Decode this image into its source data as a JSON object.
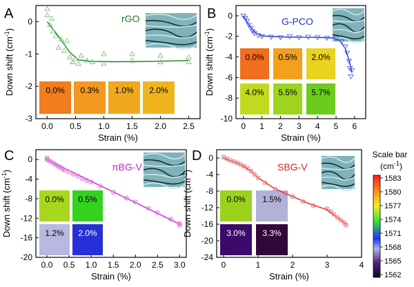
{
  "chart_data": [
    {
      "panel": "A",
      "type": "scatter",
      "title": "rGO",
      "title_color": "#1e7a1e",
      "xlabel": "Strain (%)",
      "ylabel": "Down shift (cm-1)",
      "xlim": [
        -0.2,
        2.7
      ],
      "ylim": [
        -3,
        0.5
      ],
      "xticks": [
        0.0,
        0.5,
        1.0,
        1.5,
        2.0,
        2.5
      ],
      "xtick_labels": [
        "0.0",
        "0.5",
        "1.0",
        "1.5",
        "2.0",
        "2.5"
      ],
      "yticks": [
        0,
        -1,
        -2,
        -3
      ],
      "ytick_labels": [
        "0",
        "-1",
        "-2",
        "-3"
      ],
      "marker": "triangle-up",
      "series": [
        {
          "color": "#1e7a1e",
          "points": [
            [
              0.0,
              0.4
            ],
            [
              0.0,
              0.2
            ],
            [
              0.05,
              -0.1
            ],
            [
              0.08,
              0.1
            ],
            [
              0.1,
              -0.3
            ],
            [
              0.15,
              -0.45
            ],
            [
              0.2,
              -0.8
            ],
            [
              0.25,
              -0.55
            ],
            [
              0.3,
              -0.9
            ],
            [
              0.35,
              -0.6
            ],
            [
              0.4,
              -1.1
            ],
            [
              0.45,
              -1.25
            ],
            [
              0.5,
              -1.15
            ],
            [
              0.55,
              -1.3
            ],
            [
              0.6,
              -1.05
            ],
            [
              0.7,
              -1.2
            ],
            [
              0.8,
              -1.25
            ],
            [
              1.0,
              -1.0
            ],
            [
              1.0,
              -1.3
            ],
            [
              1.5,
              -1.2
            ],
            [
              1.5,
              -1.0
            ],
            [
              2.0,
              -1.25
            ],
            [
              2.0,
              -1.05
            ],
            [
              2.5,
              -1.1
            ],
            [
              2.5,
              -1.25
            ]
          ],
          "fit": [
            [
              0.0,
              0.0
            ],
            [
              0.2,
              -0.45
            ],
            [
              0.4,
              -0.95
            ],
            [
              0.55,
              -1.18
            ],
            [
              0.8,
              -1.23
            ],
            [
              1.2,
              -1.24
            ],
            [
              1.8,
              -1.23
            ],
            [
              2.5,
              -1.2
            ]
          ]
        }
      ],
      "insets": [
        "0.0%",
        "0.3%",
        "1.0%",
        "2.0%"
      ],
      "inset_colors": [
        "#f07d1e",
        "#f2981e",
        "#f2a81e",
        "#f0b41e"
      ]
    },
    {
      "panel": "B",
      "type": "scatter",
      "title": "G-PCO",
      "title_color": "#2233cc",
      "xlabel": "Strain (%)",
      "ylabel": "Down shift (cm-1)",
      "xlim": [
        -0.4,
        6.6
      ],
      "ylim": [
        -10,
        1
      ],
      "xticks": [
        0,
        1,
        2,
        3,
        4,
        5,
        6
      ],
      "xtick_labels": [
        "0",
        "1",
        "2",
        "3",
        "4",
        "5",
        "6"
      ],
      "yticks": [
        0,
        -2,
        -4,
        -6,
        -8,
        -10
      ],
      "ytick_labels": [
        "0",
        "-2",
        "-4",
        "-6",
        "-8",
        "-10"
      ],
      "marker": "triangle-down",
      "series": [
        {
          "color": "#2233cc",
          "points": [
            [
              0.0,
              0.0
            ],
            [
              0.1,
              -0.2
            ],
            [
              0.2,
              -0.5
            ],
            [
              0.3,
              -0.9
            ],
            [
              0.4,
              -1.2
            ],
            [
              0.5,
              -1.5
            ],
            [
              0.6,
              -1.7
            ],
            [
              0.8,
              -1.9
            ],
            [
              1.0,
              -2.0
            ],
            [
              1.5,
              -2.05
            ],
            [
              2.0,
              -2.1
            ],
            [
              2.5,
              -2.0
            ],
            [
              3.0,
              -2.1
            ],
            [
              3.5,
              -2.05
            ],
            [
              4.0,
              -2.1
            ],
            [
              4.5,
              -2.15
            ],
            [
              5.0,
              -2.2
            ],
            [
              5.3,
              -2.5
            ],
            [
              5.5,
              -3.0
            ],
            [
              5.6,
              -3.6
            ],
            [
              5.7,
              -4.4
            ],
            [
              5.75,
              -5.1
            ],
            [
              5.8,
              -5.9
            ],
            [
              5.85,
              -5.3
            ]
          ],
          "fit": [
            [
              0.0,
              0.0
            ],
            [
              0.3,
              -0.9
            ],
            [
              0.6,
              -1.6
            ],
            [
              1.0,
              -1.95
            ],
            [
              2.0,
              -2.05
            ],
            [
              3.0,
              -2.08
            ],
            [
              4.0,
              -2.1
            ],
            [
              4.8,
              -2.15
            ],
            [
              5.2,
              -2.4
            ],
            [
              5.5,
              -3.2
            ],
            [
              5.7,
              -4.3
            ],
            [
              5.85,
              -5.5
            ]
          ]
        }
      ],
      "insets": [
        "0.0%",
        "0.5%",
        "2.0%",
        "4.0%",
        "5.5%",
        "5.7%"
      ],
      "inset_colors": [
        "#f06e1e",
        "#f2a01e",
        "#ead21e",
        "#c2da1e",
        "#9cd41e",
        "#6ccc1e"
      ]
    },
    {
      "panel": "C",
      "type": "scatter",
      "title": "πBG-V",
      "title_color": "#cc22cc",
      "xlabel": "Strain (%)",
      "ylabel": "Down shift (cm-1)",
      "xlim": [
        -0.25,
        3.15
      ],
      "ylim": [
        -20,
        2
      ],
      "xticks": [
        0.0,
        0.5,
        1.0,
        1.5,
        2.0,
        2.5,
        3.0
      ],
      "xtick_labels": [
        "0.0",
        "0.5",
        "1.0",
        "1.5",
        "2.0",
        "2.5",
        "3.0"
      ],
      "yticks": [
        0,
        -4,
        -8,
        -12,
        -16,
        -20
      ],
      "ytick_labels": [
        "0",
        "-4",
        "-8",
        "-12",
        "-16",
        "-20"
      ],
      "marker": "x-circle",
      "series": [
        {
          "color": "#cc22cc",
          "points": [
            [
              0.0,
              0.3
            ],
            [
              0.0,
              0.0
            ],
            [
              0.05,
              -0.3
            ],
            [
              0.1,
              -0.5
            ],
            [
              0.15,
              -0.8
            ],
            [
              0.2,
              -1.1
            ],
            [
              0.25,
              -1.4
            ],
            [
              0.3,
              -1.6
            ],
            [
              0.35,
              -1.9
            ],
            [
              0.4,
              -2.2
            ],
            [
              0.5,
              -2.6
            ],
            [
              0.6,
              -3.0
            ],
            [
              0.7,
              -3.4
            ],
            [
              0.8,
              -3.9
            ],
            [
              0.9,
              -4.3
            ],
            [
              1.0,
              -4.6
            ],
            [
              1.2,
              -5.4
            ],
            [
              1.5,
              -6.7
            ],
            [
              1.8,
              -7.9
            ],
            [
              2.0,
              -8.7
            ],
            [
              2.3,
              -10.0
            ],
            [
              2.5,
              -10.9
            ],
            [
              2.8,
              -12.2
            ],
            [
              3.0,
              -13.1
            ],
            [
              3.0,
              -13.4
            ]
          ],
          "fit": [
            [
              0.0,
              0.0
            ],
            [
              1.0,
              -4.45
            ],
            [
              2.0,
              -8.8
            ],
            [
              3.0,
              -13.2
            ]
          ]
        }
      ],
      "insets": [
        "0.0%",
        "0.5%",
        "1.2%",
        "2.0%"
      ],
      "inset_colors": [
        "#a8d81e",
        "#32d21e",
        "#b8b8e0",
        "#2630d8"
      ]
    },
    {
      "panel": "D",
      "type": "scatter",
      "title": "SBG-V",
      "title_color": "#dd2222",
      "xlabel": "Strain (%)",
      "ylabel": "Down shift (cm-1)",
      "xlim": [
        -0.2,
        4.0
      ],
      "ylim": [
        -24,
        2
      ],
      "xticks": [
        0,
        1,
        2,
        3,
        4
      ],
      "xtick_labels": [
        "0",
        "1",
        "2",
        "3",
        "4"
      ],
      "yticks": [
        0,
        -4,
        -8,
        -12,
        -16,
        -20,
        -24
      ],
      "ytick_labels": [
        "0",
        "-4",
        "-8",
        "-12",
        "-16",
        "-20",
        "-24"
      ],
      "marker": "x-circle",
      "series": [
        {
          "color": "#dd2222",
          "points": [
            [
              0.0,
              0.2
            ],
            [
              0.1,
              -0.2
            ],
            [
              0.2,
              -0.6
            ],
            [
              0.3,
              -0.9
            ],
            [
              0.4,
              -1.2
            ],
            [
              0.5,
              -1.6
            ],
            [
              0.6,
              -2.0
            ],
            [
              0.7,
              -2.5
            ],
            [
              0.8,
              -3.2
            ],
            [
              0.9,
              -4.0
            ],
            [
              1.0,
              -4.8
            ],
            [
              1.2,
              -6.0
            ],
            [
              1.5,
              -7.5
            ],
            [
              1.8,
              -8.6
            ],
            [
              2.0,
              -9.3
            ],
            [
              2.3,
              -10.5
            ],
            [
              2.6,
              -11.5
            ],
            [
              3.0,
              -12.3
            ],
            [
              3.1,
              -12.9
            ],
            [
              3.2,
              -13.6
            ],
            [
              3.3,
              -14.4
            ],
            [
              3.4,
              -15.0
            ],
            [
              3.5,
              -15.6
            ],
            [
              3.55,
              -16.2
            ]
          ],
          "fit": [
            [
              0.0,
              0.0
            ],
            [
              0.5,
              -1.6
            ],
            [
              0.8,
              -3.2
            ],
            [
              1.0,
              -4.8
            ],
            [
              1.5,
              -7.5
            ],
            [
              2.0,
              -9.3
            ],
            [
              2.5,
              -11.1
            ],
            [
              3.0,
              -12.5
            ],
            [
              3.3,
              -14.4
            ],
            [
              3.55,
              -16.0
            ]
          ]
        }
      ],
      "insets": [
        "0.0%",
        "1.5%",
        "3.0%",
        "3.3%"
      ],
      "inset_colors": [
        "#9ad21e",
        "#b2b2d8",
        "#3c0a6a",
        "#32083c"
      ]
    }
  ],
  "panel_labels": [
    "A",
    "B",
    "C",
    "D"
  ],
  "colorbar": {
    "title": "Scale bar",
    "unit": "(cm-1)",
    "ticks": [
      "1583",
      "1580",
      "1577",
      "1574",
      "1571",
      "1568",
      "1565",
      "1562"
    ]
  }
}
